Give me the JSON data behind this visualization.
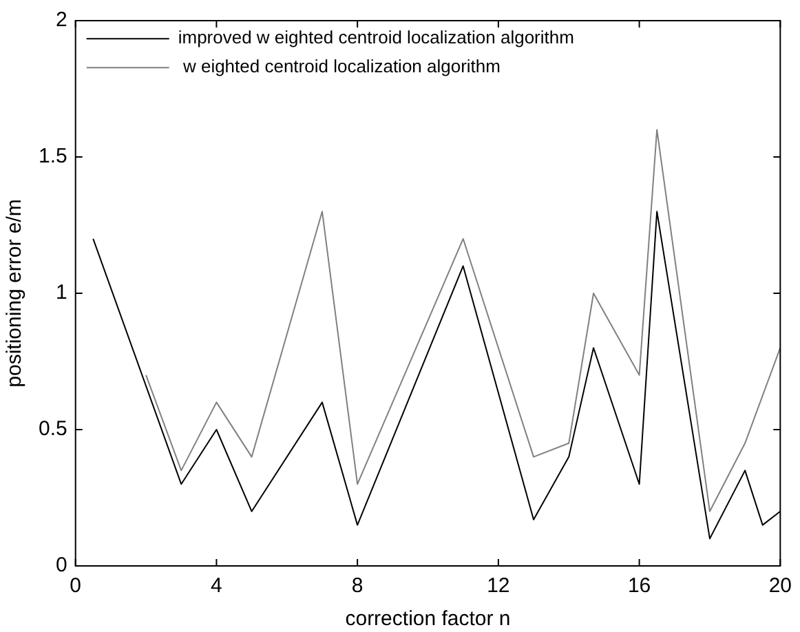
{
  "chart_data": {
    "type": "line",
    "xlabel": "correction factor n",
    "ylabel": "positioning error e/m",
    "xlim": [
      0,
      20
    ],
    "xticks": [
      0,
      4,
      8,
      12,
      16,
      20
    ],
    "ylim": [
      0,
      2
    ],
    "yticks": [
      0,
      0.5,
      1,
      1.5,
      2
    ],
    "grid": false,
    "legend": "top left",
    "marker": "none",
    "series": [
      {
        "name": "improved w eighted centroid localization algorithm",
        "color": "#000000",
        "x": [
          0.5,
          3,
          4,
          5,
          7,
          8,
          11,
          13,
          14,
          14.7,
          16,
          16.5,
          18,
          19,
          19.5,
          20
        ],
        "values": [
          1.2,
          0.3,
          0.5,
          0.2,
          0.6,
          0.15,
          1.1,
          0.17,
          0.4,
          0.8,
          0.3,
          1.3,
          0.1,
          0.35,
          0.15,
          0.2
        ]
      },
      {
        "name": " w eighted centroid localization algorithm",
        "color": "#808080",
        "x": [
          2,
          3,
          4,
          5,
          7,
          8,
          11,
          13,
          14,
          14.7,
          16,
          16.5,
          18,
          19,
          20
        ],
        "values": [
          0.7,
          0.35,
          0.6,
          0.4,
          1.3,
          0.3,
          1.2,
          0.4,
          0.45,
          1.0,
          0.7,
          1.6,
          0.2,
          0.45,
          0.8
        ]
      }
    ]
  }
}
